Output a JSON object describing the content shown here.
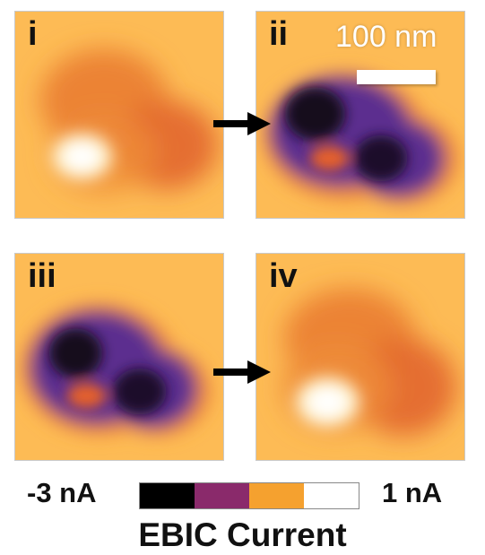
{
  "panels": [
    {
      "label": "i"
    },
    {
      "label": "ii"
    },
    {
      "label": "iii"
    },
    {
      "label": "iv"
    }
  ],
  "scalebar": {
    "label": "100 nm"
  },
  "colorbar": {
    "min_label": "-3 nA",
    "max_label": "1 nA",
    "title": "EBIC Current",
    "colors": [
      "#000000",
      "#8a2a6b",
      "#f5a12f",
      "#ffffff"
    ]
  },
  "colors": {
    "background_orange": "#fdbb55",
    "mid_orange": "#e8732d",
    "purple": "#5b2d8f",
    "dark": "#150a1a",
    "bright": "#fffbe8"
  }
}
